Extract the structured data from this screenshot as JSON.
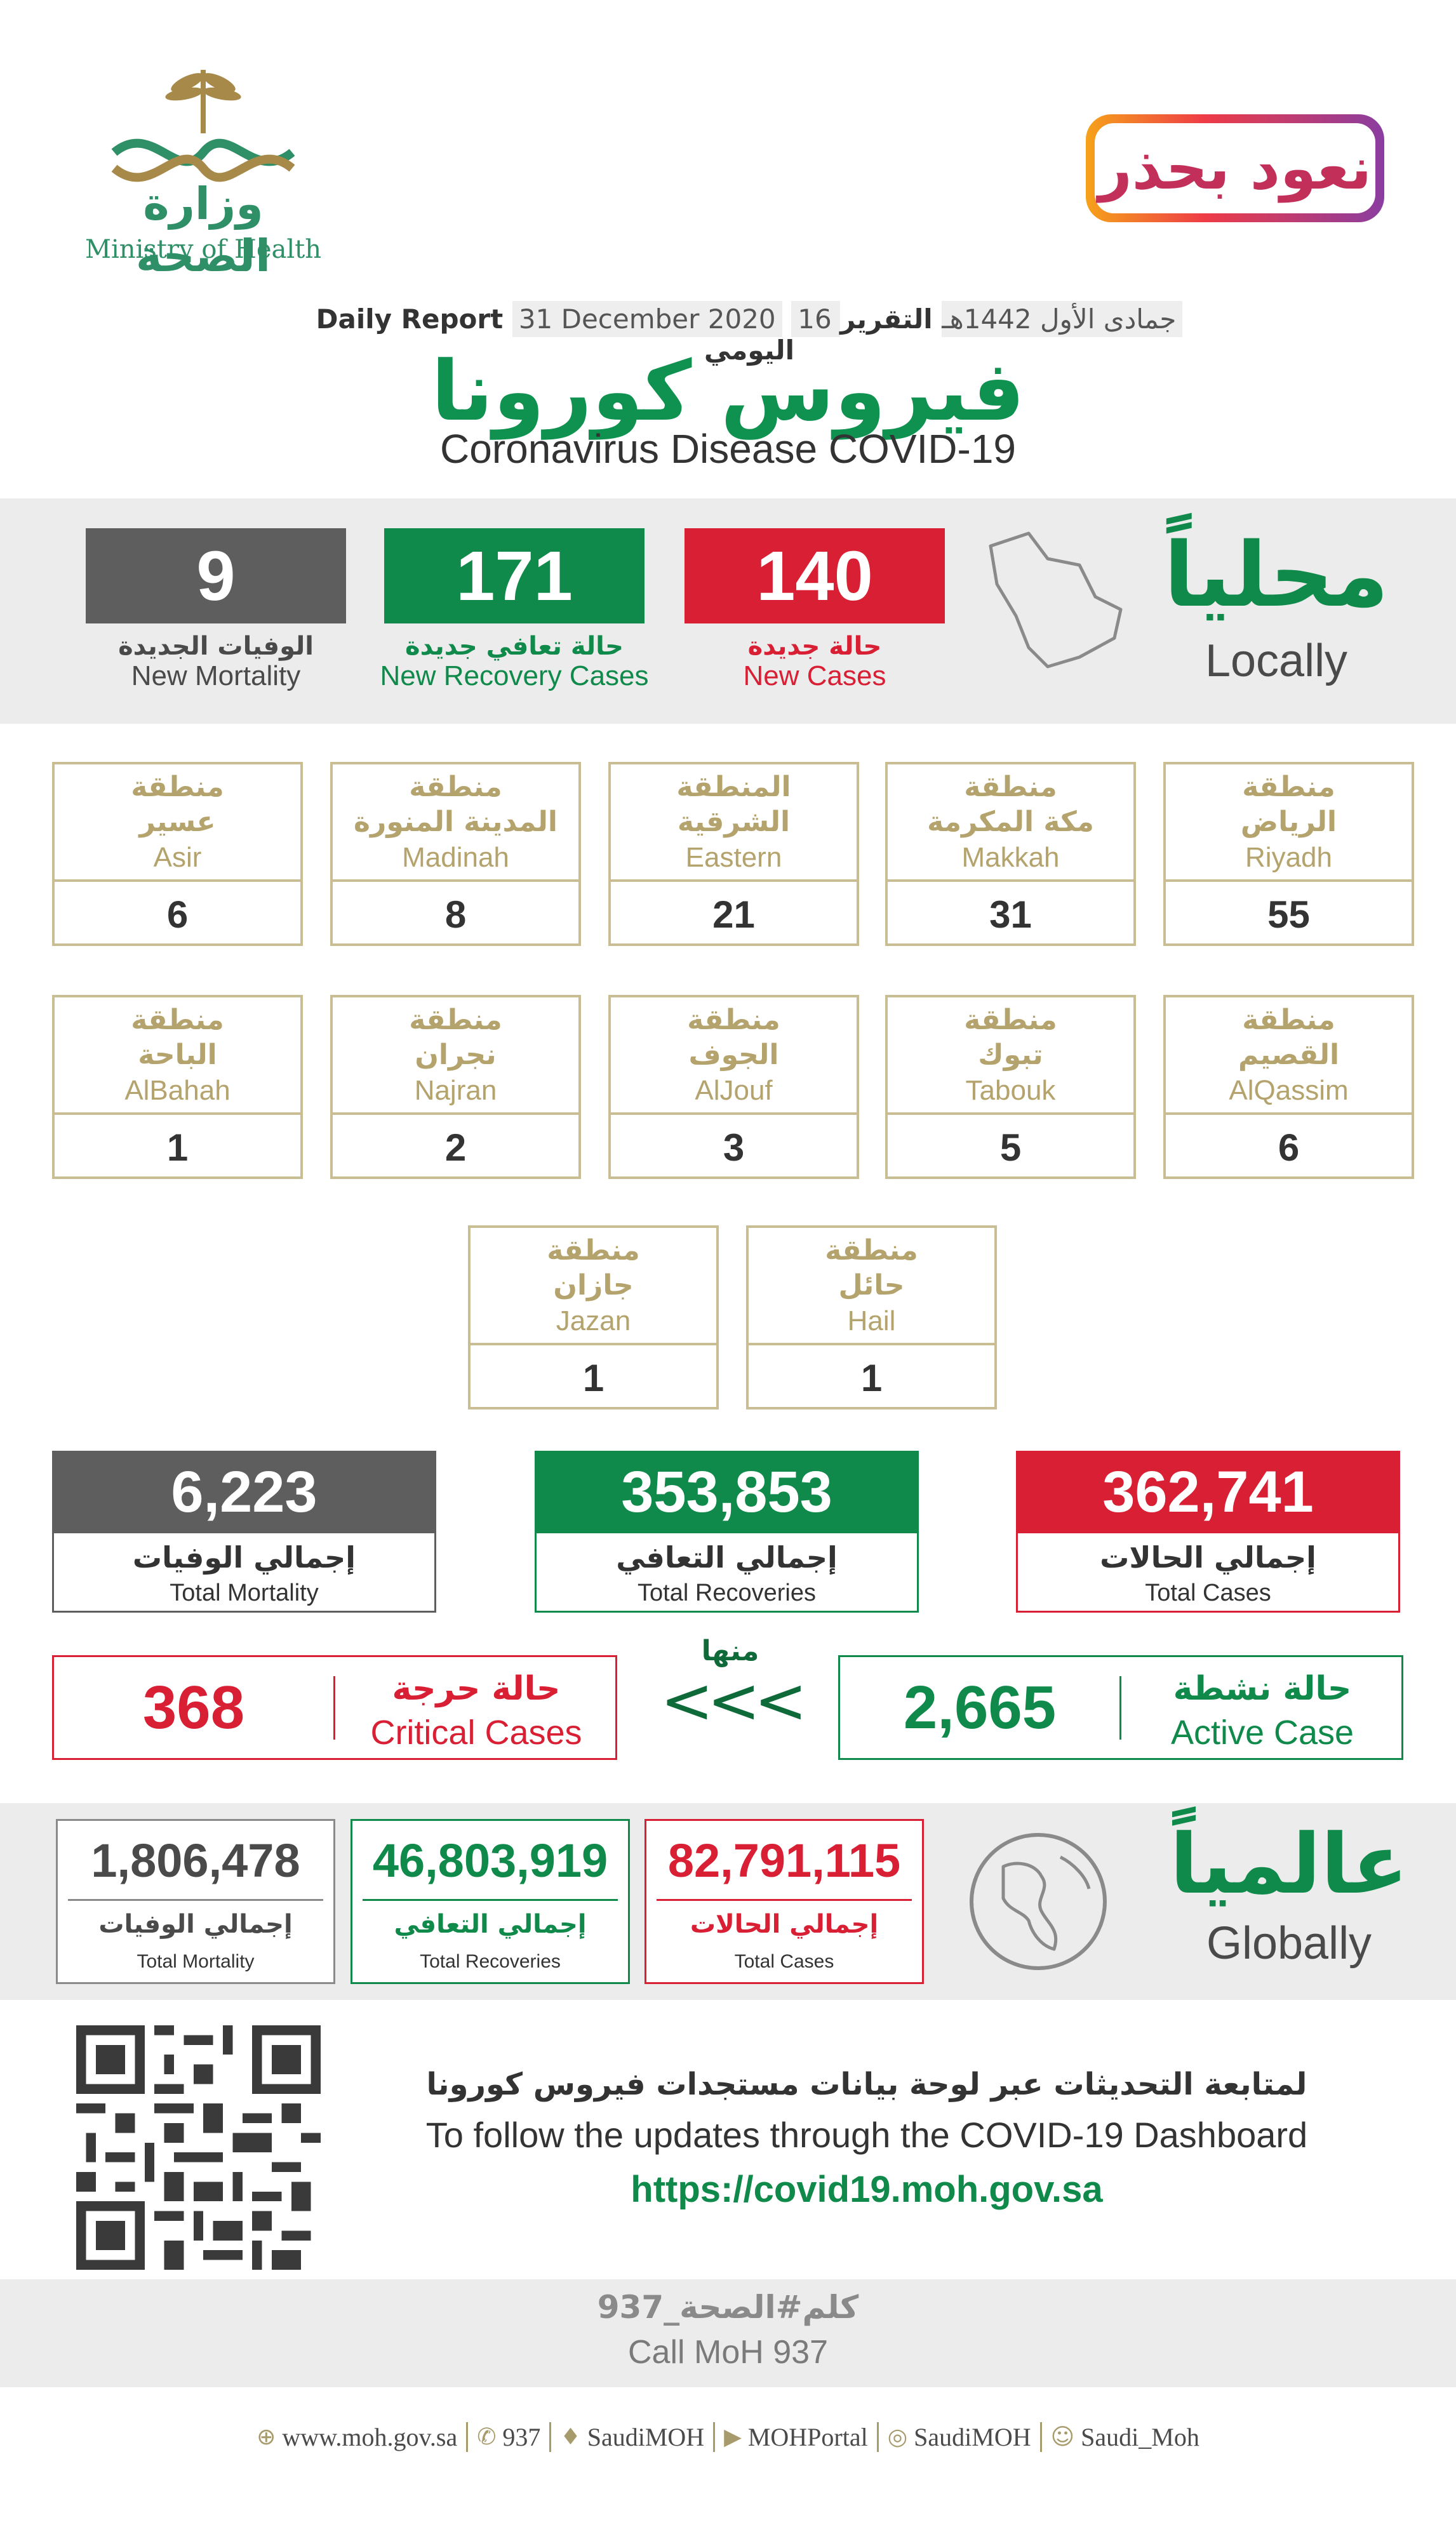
{
  "header": {
    "ministry_ar": "وزارة الصحة",
    "ministry_en": "Ministry of Health",
    "campaign": "نعود بحذر",
    "report_ar": "التقرير اليومي",
    "report_hijri": "16 جمادى الأول 1442هـ",
    "report_date": "31 December 2020",
    "report_en": "Daily Report",
    "title_ar": "فيروس كورونا",
    "title_en": "Coronavirus Disease COVID-19"
  },
  "locally": {
    "label_ar": "محلياً",
    "label_en": "Locally",
    "new_cases": {
      "value": "140",
      "label_ar": "حالة جديدة",
      "label_en": "New Cases"
    },
    "new_recovery": {
      "value": "171",
      "label_ar": "حالة تعافي جديدة",
      "label_en": "New Recovery Cases"
    },
    "new_mortality": {
      "value": "9",
      "label_ar": "الوفيات الجديدة",
      "label_en": "New Mortality"
    }
  },
  "regions": [
    {
      "prefix": "منطقة",
      "name_ar": "الرياض",
      "name_en": "Riyadh",
      "value": "55"
    },
    {
      "prefix": "منطقة",
      "name_ar": "مكة المكرمة",
      "name_en": "Makkah",
      "value": "31"
    },
    {
      "prefix": "المنطقة",
      "name_ar": "الشرقية",
      "name_en": "Eastern",
      "value": "21"
    },
    {
      "prefix": "منطقة",
      "name_ar": "المدينة المنورة",
      "name_en": "Madinah",
      "value": "8"
    },
    {
      "prefix": "منطقة",
      "name_ar": "عسير",
      "name_en": "Asir",
      "value": "6"
    },
    {
      "prefix": "منطقة",
      "name_ar": "القصيم",
      "name_en": "AlQassim",
      "value": "6"
    },
    {
      "prefix": "منطقة",
      "name_ar": "تبوك",
      "name_en": "Tabouk",
      "value": "5"
    },
    {
      "prefix": "منطقة",
      "name_ar": "الجوف",
      "name_en": "AlJouf",
      "value": "3"
    },
    {
      "prefix": "منطقة",
      "name_ar": "نجران",
      "name_en": "Najran",
      "value": "2"
    },
    {
      "prefix": "منطقة",
      "name_ar": "الباحة",
      "name_en": "AlBahah",
      "value": "1"
    },
    {
      "prefix": "منطقة",
      "name_ar": "حائل",
      "name_en": "Hail",
      "value": "1"
    },
    {
      "prefix": "منطقة",
      "name_ar": "جازان",
      "name_en": "Jazan",
      "value": "1"
    }
  ],
  "totals": {
    "cases": {
      "value": "362,741",
      "label_ar": "إجمالي الحالات",
      "label_en": "Total Cases"
    },
    "recoveries": {
      "value": "353,853",
      "label_ar": "إجمالي التعافي",
      "label_en": "Total Recoveries"
    },
    "mortality": {
      "value": "6,223",
      "label_ar": "إجمالي الوفيات",
      "label_en": "Total Mortality"
    }
  },
  "active": {
    "value": "2,665",
    "label_ar": "حالة نشطة",
    "label_en": "Active Case"
  },
  "of_which": {
    "label_ar": "منها",
    "arrows": "<<<"
  },
  "critical": {
    "value": "368",
    "label_ar": "حالة حرجة",
    "label_en": "Critical Cases"
  },
  "globally": {
    "label_ar": "عالمياً",
    "label_en": "Globally",
    "cases": {
      "value": "82,791,115",
      "label_ar": "إجمالي الحالات",
      "label_en": "Total Cases"
    },
    "recoveries": {
      "value": "46,803,919",
      "label_ar": "إجمالي التعافي",
      "label_en": "Total Recoveries"
    },
    "mortality": {
      "value": "1,806,478",
      "label_ar": "إجمالي الوفيات",
      "label_en": "Total Mortality"
    }
  },
  "dashboard": {
    "text_ar": "لمتابعة التحديثات عبر لوحة بيانات مستجدات فيروس كورونا",
    "text_en": "To follow the updates through the COVID-19 Dashboard",
    "url": "https://covid19.moh.gov.sa"
  },
  "call": {
    "text_ar": "كلم#الصحة_937",
    "text_en": "Call MoH 937"
  },
  "social": [
    {
      "icon": "globe-icon",
      "glyph": "⊕",
      "text": "www.moh.gov.sa"
    },
    {
      "icon": "phone-icon",
      "glyph": "✆",
      "text": "937"
    },
    {
      "icon": "twitter-icon",
      "glyph": "♦",
      "text": "SaudiMOH"
    },
    {
      "icon": "youtube-icon",
      "glyph": "▶",
      "text": "MOHPortal"
    },
    {
      "icon": "instagram-icon",
      "glyph": "◎",
      "text": "SaudiMOH"
    },
    {
      "icon": "snapchat-icon",
      "glyph": "☺",
      "text": "Saudi_Moh"
    }
  ],
  "colors": {
    "red": "#d81f33",
    "green": "#0f8a4a",
    "grey": "#5e5e5e",
    "gold": "#b4a36c"
  }
}
